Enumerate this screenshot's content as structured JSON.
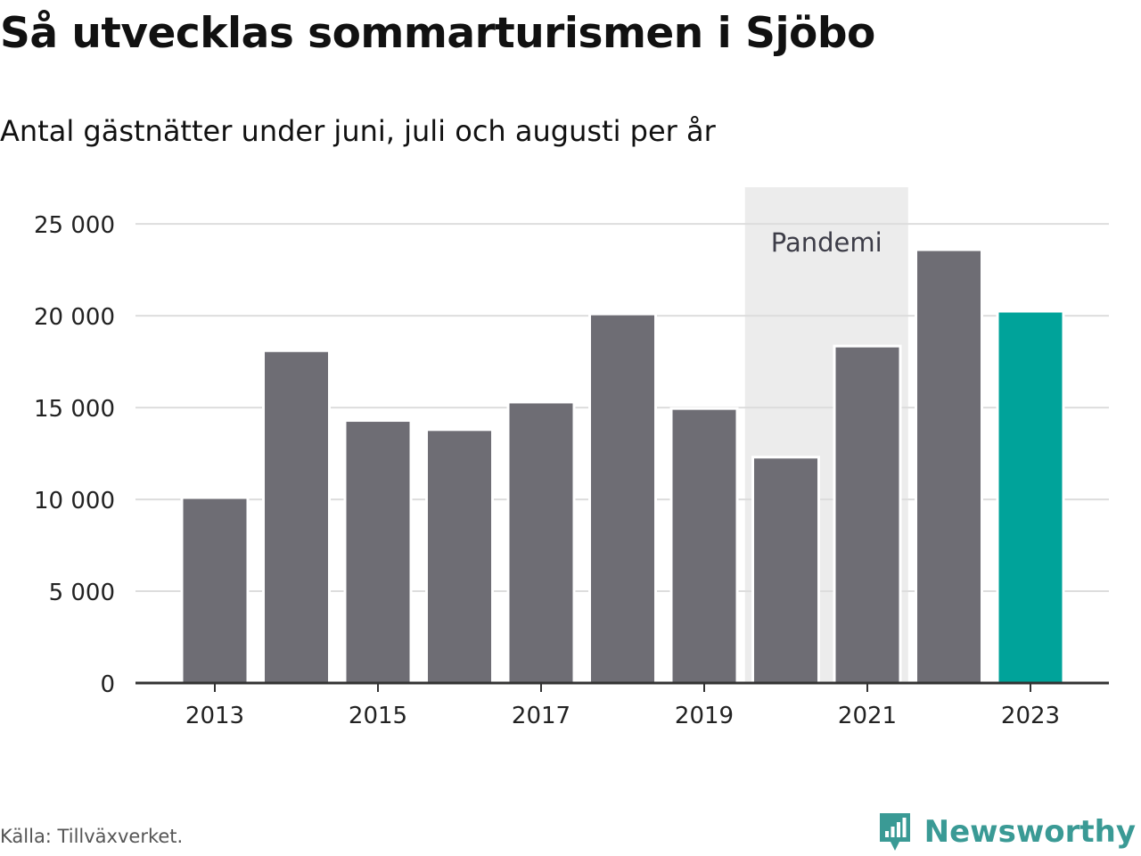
{
  "title": "Så utvecklas sommarturismen i Sjöbo",
  "subtitle": "Antal gästnätter under juni, juli och augusti per år",
  "source": "Källa: Tillväxverket.",
  "brand": "Newsworthy",
  "colors": {
    "bar": "#6e6d74",
    "highlight": "#00a39a",
    "band": "#ececec",
    "grid": "#dddddd",
    "axis": "#333333",
    "text": "#222222",
    "brand": "#3a9a95"
  },
  "chart_data": {
    "type": "bar",
    "categories": [
      "2013",
      "2014",
      "2015",
      "2016",
      "2017",
      "2018",
      "2019",
      "2020",
      "2021",
      "2022",
      "2023"
    ],
    "values": [
      10100,
      18100,
      14300,
      13800,
      15300,
      20100,
      14950,
      12300,
      18350,
      23600,
      20250
    ],
    "highlight_category": "2023",
    "ylim": [
      0,
      27000
    ],
    "yticks": [
      0,
      5000,
      10000,
      15000,
      20000,
      25000
    ],
    "ytick_labels": [
      "0",
      "5 000",
      "10 000",
      "15 000",
      "20 000",
      "25 000"
    ],
    "xtick_labels": [
      "2013",
      "2015",
      "2017",
      "2019",
      "2021",
      "2023"
    ],
    "annotations": [
      {
        "label": "Pandemi",
        "from": "2020",
        "to": "2021"
      }
    ],
    "grid": true
  }
}
